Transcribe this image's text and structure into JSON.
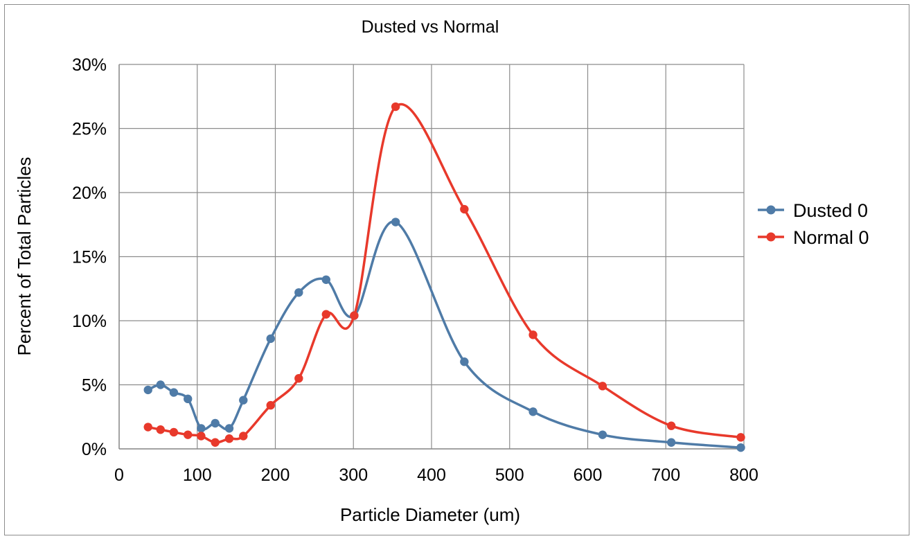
{
  "chart_data": {
    "type": "line",
    "title": "Dusted vs Normal",
    "xlabel": "Particle Diameter (um)",
    "ylabel": "Percent of Total Particles",
    "xlim": [
      0,
      800
    ],
    "ylim": [
      0,
      30
    ],
    "x_ticks": [
      0,
      100,
      200,
      300,
      400,
      500,
      600,
      700,
      800
    ],
    "y_ticks": [
      0,
      5,
      10,
      15,
      20,
      25,
      30
    ],
    "x_tick_labels": [
      "0",
      "100",
      "200",
      "300",
      "400",
      "500",
      "600",
      "700",
      "800"
    ],
    "y_tick_labels": [
      "0%",
      "5%",
      "10%",
      "15%",
      "20%",
      "25%",
      "30%"
    ],
    "grid": true,
    "legend_position": "right",
    "smooth": true,
    "series": [
      {
        "name": "Dusted 0",
        "color": "#4f7ba7",
        "points": [
          [
            37,
            4.6
          ],
          [
            53,
            5.0
          ],
          [
            70,
            4.4
          ],
          [
            88,
            3.9
          ],
          [
            105,
            1.6
          ],
          [
            123,
            2.0
          ],
          [
            141,
            1.6
          ],
          [
            159,
            3.8
          ],
          [
            194,
            8.6
          ],
          [
            230,
            12.2
          ],
          [
            265,
            13.2
          ],
          [
            301,
            10.4
          ],
          [
            354,
            17.7
          ],
          [
            442,
            6.8
          ],
          [
            530,
            2.9
          ],
          [
            619,
            1.1
          ],
          [
            707,
            0.5
          ],
          [
            796,
            0.1
          ]
        ]
      },
      {
        "name": "Normal 0",
        "color": "#e8392b",
        "points": [
          [
            37,
            1.7
          ],
          [
            53,
            1.5
          ],
          [
            70,
            1.3
          ],
          [
            88,
            1.1
          ],
          [
            105,
            1.0
          ],
          [
            123,
            0.5
          ],
          [
            141,
            0.8
          ],
          [
            159,
            1.0
          ],
          [
            194,
            3.4
          ],
          [
            230,
            5.5
          ],
          [
            265,
            10.5
          ],
          [
            301,
            10.4
          ],
          [
            354,
            26.7
          ],
          [
            442,
            18.7
          ],
          [
            530,
            8.9
          ],
          [
            619,
            4.9
          ],
          [
            707,
            1.8
          ],
          [
            796,
            0.9
          ]
        ]
      }
    ]
  }
}
